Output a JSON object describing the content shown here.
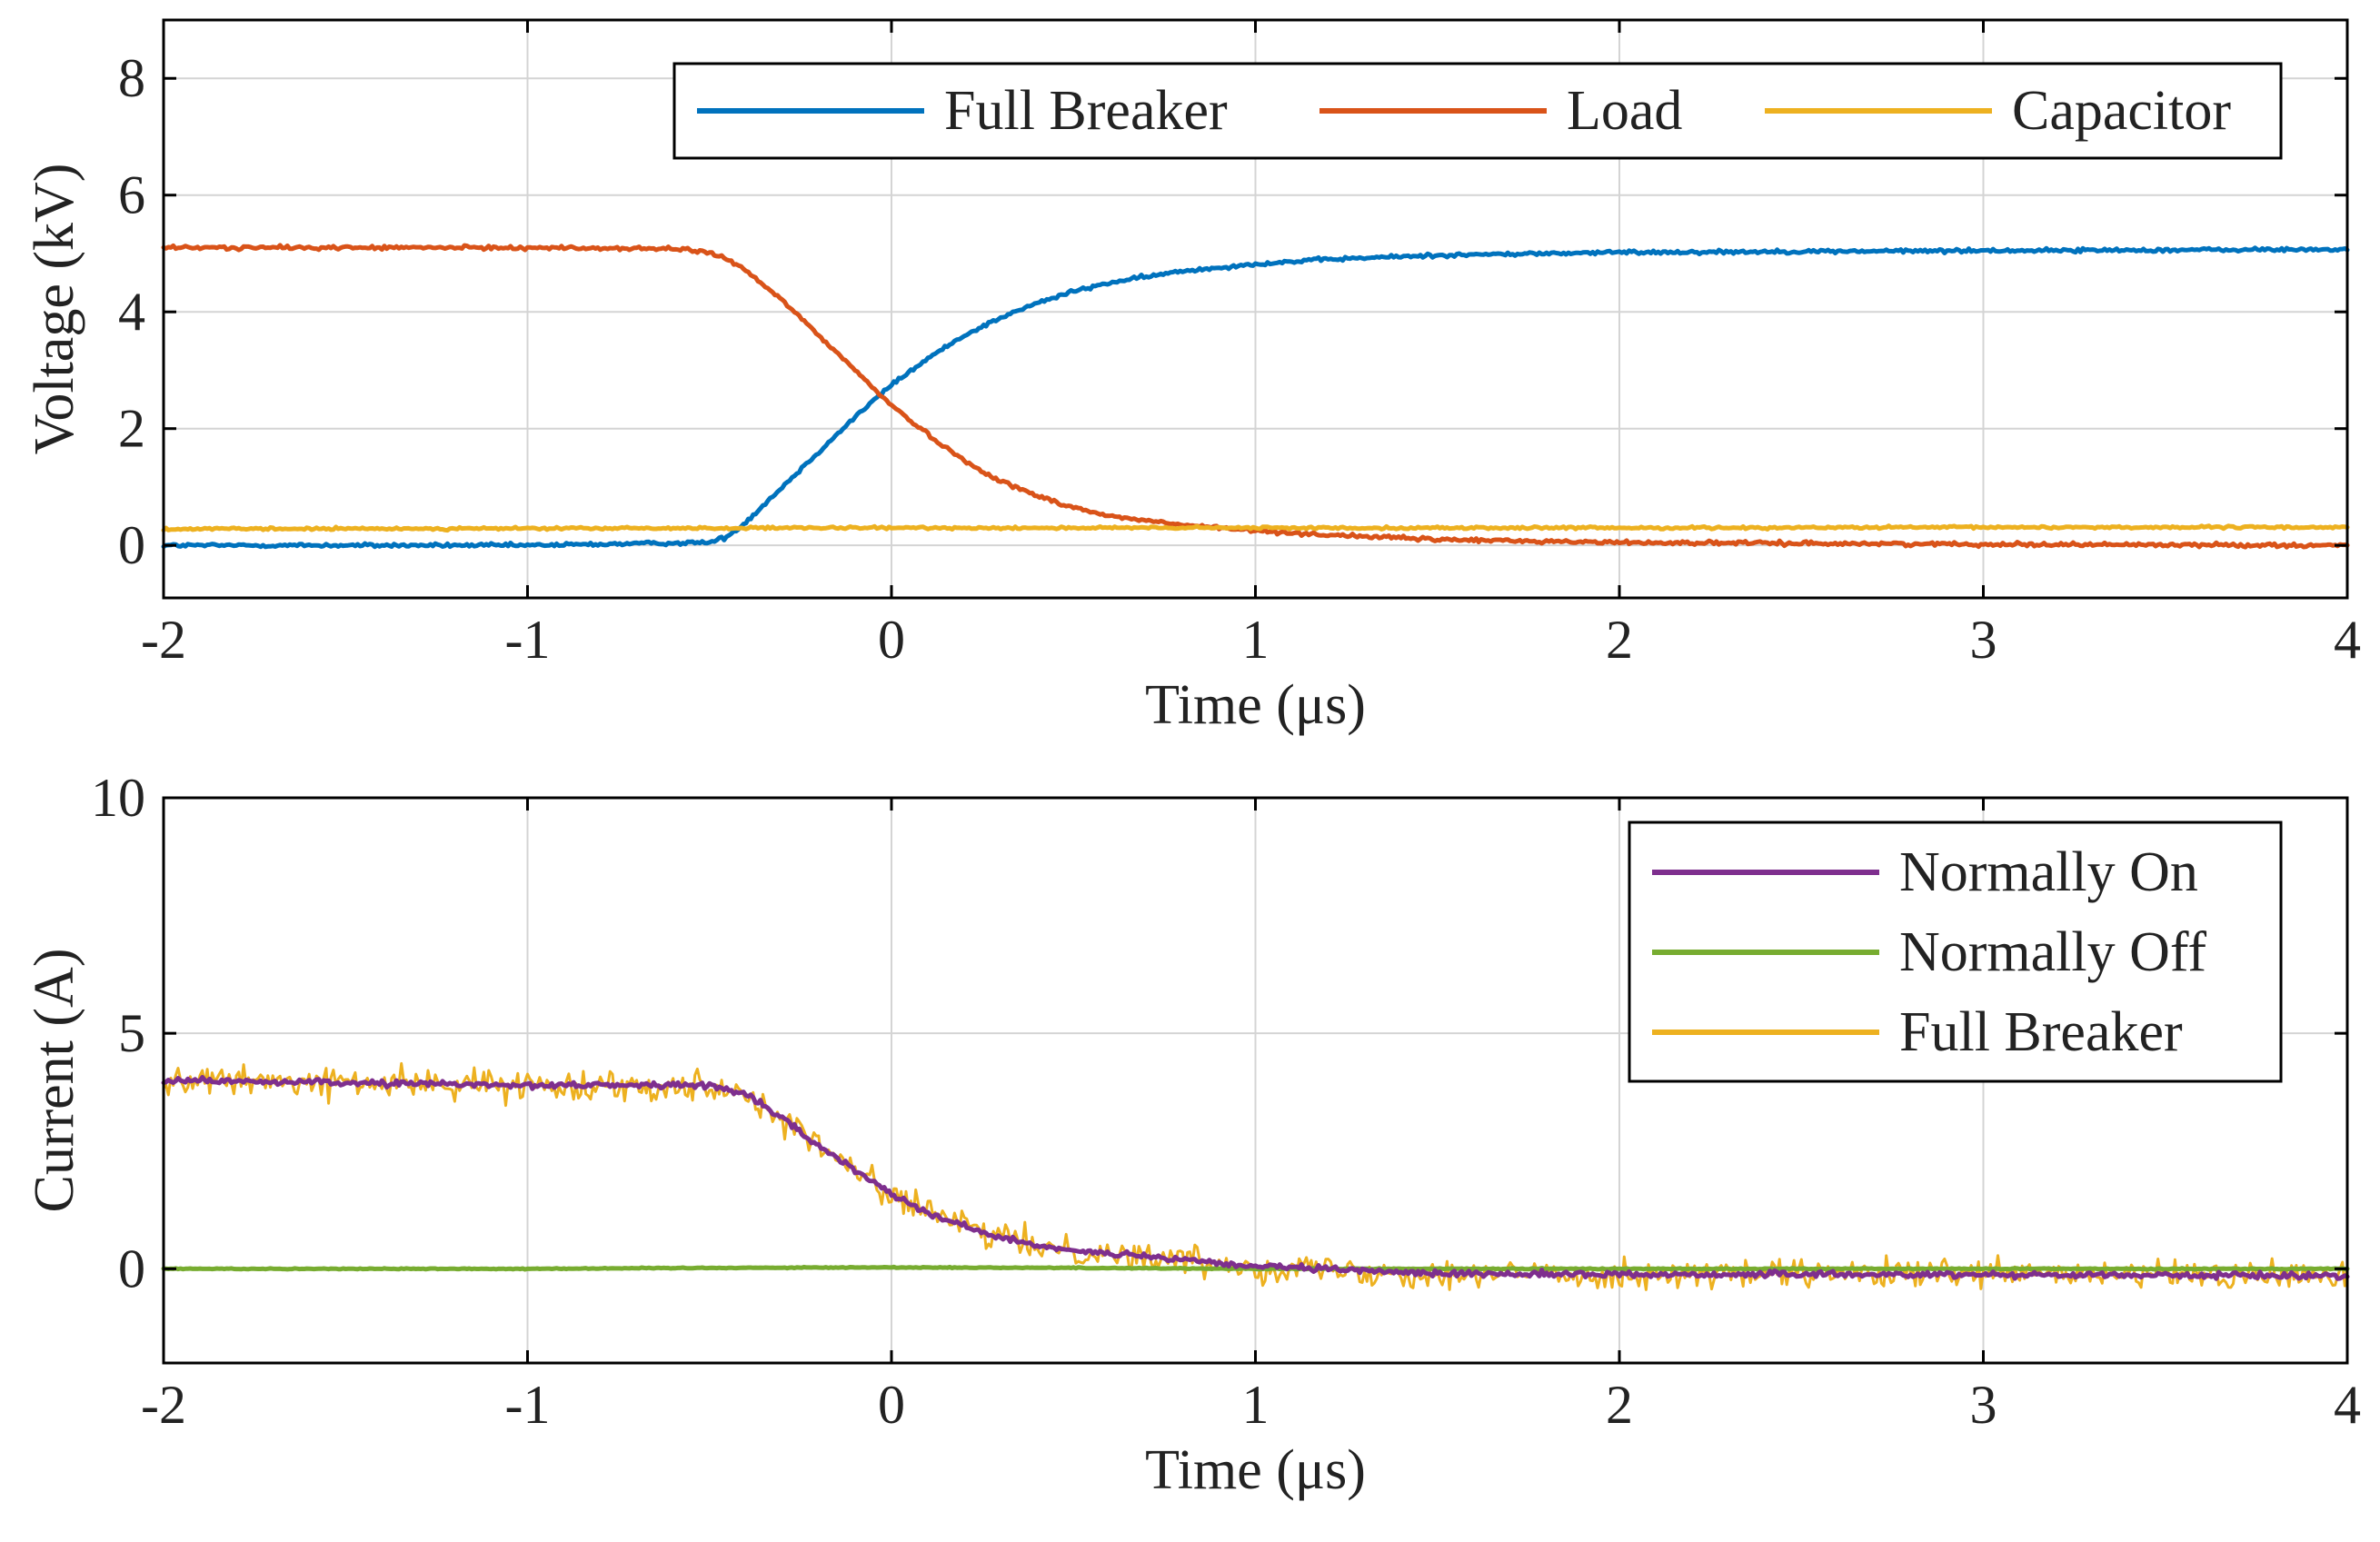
{
  "chart_data": [
    {
      "type": "line",
      "id": "voltage-chart",
      "title": "",
      "xlabel": "Time (μs)",
      "ylabel": "Voltage (kV)",
      "xlim": [
        -2,
        4
      ],
      "ylim": [
        -0.9,
        9
      ],
      "xticks": [
        -2,
        -1,
        0,
        1,
        2,
        3,
        4
      ],
      "xtick_labels": [
        "-2",
        "-1",
        "0",
        "1",
        "2",
        "3",
        "4"
      ],
      "yticks": [
        0,
        2,
        4,
        6,
        8
      ],
      "ytick_labels": [
        "0",
        "2",
        "4",
        "6",
        "8"
      ],
      "grid": true,
      "legend": {
        "position": "top-right",
        "orientation": "horizontal"
      },
      "series": [
        {
          "name": "Full Breaker",
          "color": "#0072BD",
          "noise": 0.03,
          "x": [
            -2,
            -1,
            -0.5,
            -0.45,
            -0.4,
            -0.3,
            -0.2,
            -0.1,
            0,
            0.1,
            0.2,
            0.3,
            0.4,
            0.5,
            0.6,
            0.8,
            1.0,
            1.2,
            1.5,
            2.0,
            3.0,
            4.0
          ],
          "y": [
            0.0,
            0.0,
            0.05,
            0.15,
            0.4,
            1.0,
            1.6,
            2.2,
            2.75,
            3.2,
            3.6,
            3.9,
            4.15,
            4.35,
            4.5,
            4.7,
            4.82,
            4.9,
            4.97,
            5.02,
            5.05,
            5.07
          ]
        },
        {
          "name": "Load",
          "color": "#D95319",
          "noise": 0.03,
          "x": [
            -2,
            -1,
            -0.6,
            -0.5,
            -0.45,
            -0.4,
            -0.3,
            -0.2,
            -0.1,
            0,
            0.1,
            0.2,
            0.3,
            0.4,
            0.5,
            0.6,
            0.8,
            1.0,
            1.2,
            1.5,
            2.0,
            3.0,
            4.0
          ],
          "y": [
            5.1,
            5.1,
            5.08,
            5.02,
            4.9,
            4.7,
            4.2,
            3.6,
            3.0,
            2.4,
            1.9,
            1.45,
            1.1,
            0.85,
            0.65,
            0.5,
            0.35,
            0.25,
            0.18,
            0.1,
            0.05,
            0.02,
            0.0
          ]
        },
        {
          "name": "Capacitor",
          "color": "#EDB120",
          "noise": 0.02,
          "x": [
            -2,
            -1,
            0,
            1,
            2,
            3,
            4
          ],
          "y": [
            0.28,
            0.29,
            0.3,
            0.3,
            0.3,
            0.31,
            0.31
          ]
        }
      ]
    },
    {
      "type": "line",
      "id": "current-chart",
      "title": "",
      "xlabel": "Time (μs)",
      "ylabel": "Current (A)",
      "xlim": [
        -2,
        4
      ],
      "ylim": [
        -2,
        10
      ],
      "xticks": [
        -2,
        -1,
        0,
        1,
        2,
        3,
        4
      ],
      "xtick_labels": [
        "-2",
        "-1",
        "0",
        "1",
        "2",
        "3",
        "4"
      ],
      "yticks": [
        0,
        5,
        10
      ],
      "ytick_labels": [
        "0",
        "5",
        "10"
      ],
      "grid": true,
      "legend": {
        "position": "top-right",
        "orientation": "vertical"
      },
      "series": [
        {
          "name": "Normally On",
          "color": "#7E2F8E",
          "noise": 0.06,
          "x": [
            -2,
            -1,
            -0.5,
            -0.4,
            -0.3,
            -0.2,
            -0.1,
            0,
            0.1,
            0.2,
            0.3,
            0.4,
            0.5,
            0.7,
            1.0,
            1.5,
            2.0,
            3.0,
            4.0
          ],
          "y": [
            4.0,
            3.9,
            3.9,
            3.7,
            3.2,
            2.6,
            2.1,
            1.6,
            1.2,
            0.9,
            0.65,
            0.5,
            0.4,
            0.25,
            0.05,
            -0.1,
            -0.12,
            -0.12,
            -0.15
          ]
        },
        {
          "name": "Normally Off",
          "color": "#77AC30",
          "noise": 0.01,
          "x": [
            -2,
            -1,
            -0.5,
            0,
            0.5,
            1.0,
            2.0,
            3.0,
            4.0
          ],
          "y": [
            0.0,
            0.0,
            0.02,
            0.03,
            0.02,
            0.0,
            0.0,
            0.0,
            0.0
          ]
        },
        {
          "name": "Full Breaker",
          "color": "#EDB120",
          "noise": 0.3,
          "x": [
            -2,
            -1,
            -0.5,
            -0.4,
            -0.3,
            -0.2,
            -0.1,
            0,
            0.1,
            0.2,
            0.3,
            0.4,
            0.5,
            0.7,
            1.0,
            1.5,
            2.0,
            3.0,
            4.0
          ],
          "y": [
            4.0,
            3.9,
            3.9,
            3.7,
            3.2,
            2.6,
            2.1,
            1.6,
            1.2,
            0.9,
            0.65,
            0.5,
            0.4,
            0.25,
            0.05,
            -0.1,
            -0.12,
            -0.12,
            -0.15
          ]
        }
      ],
      "draw_order": [
        2,
        1,
        0
      ]
    }
  ]
}
